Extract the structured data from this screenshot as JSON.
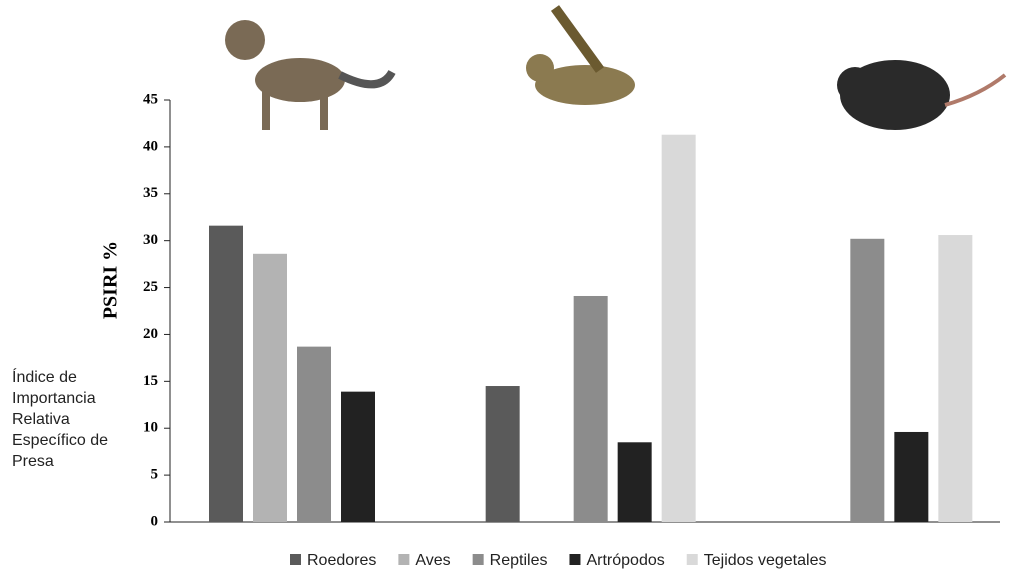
{
  "chart_data": {
    "type": "bar",
    "y_label": "PSIRI %",
    "annotation": [
      "Índice de",
      "Importancia",
      "Relativa",
      "Específico de",
      "Presa"
    ],
    "categories": [
      null,
      null,
      null
    ],
    "series": [
      {
        "name": "Roedores",
        "color": "#5a5a5a",
        "values": [
          31.6,
          14.5,
          null
        ]
      },
      {
        "name": "Aves",
        "color": "#b3b3b3",
        "values": [
          28.6,
          null,
          null
        ]
      },
      {
        "name": "Reptiles",
        "color": "#8c8c8c",
        "values": [
          18.7,
          24.1,
          30.2
        ]
      },
      {
        "name": "Artrópodos",
        "color": "#222222",
        "values": [
          13.9,
          8.5,
          9.6
        ]
      },
      {
        "name": "Tejidos vegetales",
        "color": "#d9d9d9",
        "values": [
          null,
          41.3,
          30.6
        ]
      }
    ],
    "ylim": [
      0,
      45
    ],
    "yticks": [
      0,
      5,
      10,
      15,
      20,
      25,
      30,
      35,
      40,
      45
    ]
  }
}
